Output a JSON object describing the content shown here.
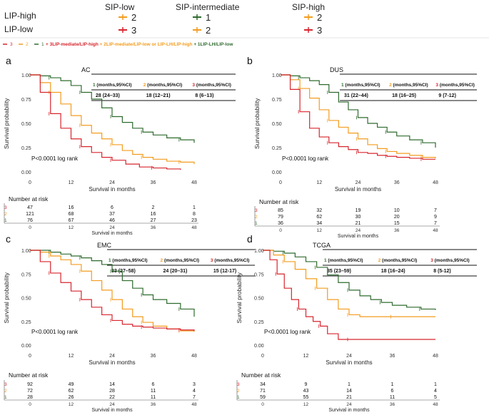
{
  "legend": {
    "col_headers": [
      "SIP-low",
      "SIP-intermediate",
      "SIP-high"
    ],
    "row_headers": [
      "LIP-high",
      "LIP-low"
    ],
    "cells": [
      [
        "2",
        "1",
        "2"
      ],
      [
        "3",
        "2",
        "3"
      ]
    ],
    "cell_colors": [
      [
        "#f39c1f",
        "#2f6b2f",
        "#f39c1f"
      ],
      [
        "#d7262e",
        "#f39c1f",
        "#d7262e"
      ]
    ],
    "line_items": [
      {
        "num": "3",
        "color": "#d7262e"
      },
      {
        "num": "2",
        "color": "#f39c1f"
      },
      {
        "num": "1",
        "color": "#2f6b2f"
      }
    ],
    "line_text": [
      {
        "text": "+ 3LIP-mediate/LIP-high",
        "color": "#d7262e"
      },
      {
        "text": "+ 2LIP-mediate/LIP-low or LIP-LH/LIP-high",
        "color": "#f39c1f"
      },
      {
        "text": "+ 1LIP-LH/LIP-low",
        "color": "#2f6b2f"
      }
    ]
  },
  "colors": {
    "g1": "#2f6b2f",
    "g2": "#f39c1f",
    "g3": "#d7262e"
  },
  "chart_data": [
    {
      "type": "line",
      "panel": "a",
      "title": "AC",
      "xlabel": "Survival in months",
      "ylabel": "Survival probability",
      "xlim": [
        0,
        48
      ],
      "ylim": [
        0,
        1
      ],
      "xticks": [
        0,
        12,
        24,
        36,
        48
      ],
      "yticks": [
        "1.00",
        "0.75",
        "0.50",
        "0.25",
        "0.00"
      ],
      "pvalue": "P<0.0001 log rank",
      "median_header": [
        "(months,95%CI)",
        "(months,95%CI)",
        "(months,95%CI)"
      ],
      "median_values": [
        "28 (24–33)",
        "18 (12–21)",
        "8 (6–13)"
      ],
      "risk_title": "Number at risk",
      "risk": [
        {
          "group": "3",
          "values": [
            "47",
            "16",
            "6",
            "2",
            "1"
          ]
        },
        {
          "group": "2",
          "values": [
            "121",
            "68",
            "37",
            "16",
            "8"
          ]
        },
        {
          "group": "1",
          "values": [
            "76",
            "67",
            "46",
            "27",
            "23"
          ]
        }
      ],
      "series": [
        {
          "name": "1",
          "x": [
            0,
            3,
            6,
            9,
            12,
            15,
            18,
            21,
            24,
            27,
            30,
            33,
            36,
            40,
            44,
            48
          ],
          "y": [
            1.0,
            0.99,
            0.97,
            0.94,
            0.89,
            0.82,
            0.75,
            0.66,
            0.57,
            0.51,
            0.45,
            0.41,
            0.38,
            0.35,
            0.33,
            0.3
          ]
        },
        {
          "name": "2",
          "x": [
            0,
            3,
            6,
            9,
            12,
            15,
            18,
            21,
            24,
            27,
            30,
            33,
            36,
            40,
            44,
            48
          ],
          "y": [
            1.0,
            0.92,
            0.82,
            0.7,
            0.58,
            0.48,
            0.4,
            0.34,
            0.28,
            0.22,
            0.18,
            0.15,
            0.13,
            0.11,
            0.1,
            0.08
          ]
        },
        {
          "name": "3",
          "x": [
            0,
            3,
            6,
            9,
            12,
            15,
            18,
            21,
            24,
            28,
            32,
            36,
            40,
            44
          ],
          "y": [
            1.0,
            0.82,
            0.6,
            0.45,
            0.34,
            0.26,
            0.2,
            0.15,
            0.12,
            0.08,
            0.05,
            0.04,
            0.03,
            0.02
          ]
        }
      ]
    },
    {
      "type": "line",
      "panel": "b",
      "title": "DUS",
      "xlabel": "Survival in months",
      "ylabel": "Survival probability",
      "xlim": [
        0,
        48
      ],
      "ylim": [
        0,
        1
      ],
      "xticks": [
        0,
        12,
        24,
        36,
        48
      ],
      "yticks": [
        "1.00",
        "0.75",
        "0.50",
        "0.25",
        "0.00"
      ],
      "pvalue": "P<0.0001 log rank",
      "median_header": [
        "(months,95%CI)",
        "(months,95%CI)",
        "(months,95%CI)"
      ],
      "median_values": [
        "31 (22–44)",
        "18 (16–25)",
        "9 (7-12)"
      ],
      "risk_title": "Number at risk",
      "risk": [
        {
          "group": "3",
          "values": [
            "85",
            "32",
            "19",
            "10",
            "7"
          ]
        },
        {
          "group": "2",
          "values": [
            "79",
            "62",
            "30",
            "20",
            "9"
          ]
        },
        {
          "group": "1",
          "values": [
            "36",
            "34",
            "21",
            "15",
            "7"
          ]
        }
      ],
      "series": [
        {
          "name": "1",
          "x": [
            0,
            3,
            6,
            9,
            12,
            15,
            18,
            21,
            24,
            27,
            30,
            33,
            36,
            40,
            44,
            48
          ],
          "y": [
            1.0,
            0.99,
            0.97,
            0.94,
            0.9,
            0.82,
            0.72,
            0.64,
            0.56,
            0.5,
            0.46,
            0.41,
            0.37,
            0.33,
            0.3,
            0.25
          ]
        },
        {
          "name": "2",
          "x": [
            0,
            3,
            6,
            9,
            12,
            15,
            18,
            21,
            24,
            27,
            30,
            33,
            36,
            40,
            44,
            48
          ],
          "y": [
            1.0,
            0.95,
            0.86,
            0.76,
            0.64,
            0.53,
            0.46,
            0.4,
            0.34,
            0.28,
            0.24,
            0.21,
            0.19,
            0.17,
            0.15,
            0.14
          ]
        },
        {
          "name": "3",
          "x": [
            0,
            3,
            6,
            9,
            12,
            15,
            18,
            21,
            24,
            27,
            30,
            33,
            36,
            40,
            44,
            48
          ],
          "y": [
            1.0,
            0.85,
            0.62,
            0.45,
            0.36,
            0.3,
            0.26,
            0.23,
            0.2,
            0.19,
            0.17,
            0.16,
            0.15,
            0.14,
            0.13,
            0.13
          ]
        }
      ]
    },
    {
      "type": "line",
      "panel": "c",
      "title": "EMC",
      "xlabel": "Survival in months",
      "ylabel": "Survival probability",
      "xlim": [
        0,
        48
      ],
      "ylim": [
        0,
        1
      ],
      "xticks": [
        0,
        12,
        24,
        36,
        48
      ],
      "yticks": [
        "1.00",
        "0.75",
        "0.50",
        "0.25",
        "0.00"
      ],
      "pvalue": "P<0.0001 log rank",
      "median_header": [
        "(months,95%CI)",
        "(months,95%CI)",
        "(months,95%CI)"
      ],
      "median_values": [
        "33 (27–58)",
        "24 (20–31)",
        "15 (12-17)"
      ],
      "risk_title": "Number at risk",
      "risk": [
        {
          "group": "3",
          "values": [
            "92",
            "49",
            "14",
            "6",
            "3"
          ]
        },
        {
          "group": "2",
          "values": [
            "72",
            "62",
            "28",
            "11",
            "4"
          ]
        },
        {
          "group": "1",
          "values": [
            "28",
            "26",
            "22",
            "11",
            "7"
          ]
        }
      ],
      "series": [
        {
          "name": "1",
          "x": [
            0,
            3,
            6,
            9,
            12,
            15,
            18,
            21,
            24,
            27,
            30,
            33,
            36,
            40,
            44,
            48
          ],
          "y": [
            1.0,
            1.0,
            0.98,
            0.96,
            0.94,
            0.92,
            0.89,
            0.85,
            0.78,
            0.68,
            0.6,
            0.53,
            0.48,
            0.44,
            0.38,
            0.3
          ]
        },
        {
          "name": "2",
          "x": [
            0,
            3,
            6,
            9,
            12,
            15,
            18,
            21,
            24,
            27,
            30,
            33,
            36,
            40,
            44,
            48
          ],
          "y": [
            1.0,
            0.98,
            0.94,
            0.9,
            0.85,
            0.78,
            0.68,
            0.58,
            0.48,
            0.38,
            0.3,
            0.24,
            0.2,
            0.17,
            0.15,
            0.14
          ]
        },
        {
          "name": "3",
          "x": [
            0,
            3,
            6,
            9,
            12,
            15,
            18,
            21,
            24,
            27,
            30,
            33,
            36,
            40,
            44,
            48
          ],
          "y": [
            1.0,
            0.88,
            0.76,
            0.66,
            0.57,
            0.48,
            0.4,
            0.32,
            0.26,
            0.22,
            0.2,
            0.19,
            0.18,
            0.17,
            0.16,
            0.15
          ]
        }
      ]
    },
    {
      "type": "line",
      "panel": "d",
      "title": "TCGA",
      "xlabel": "Survival in months",
      "ylabel": "Survival probability",
      "xlim": [
        0,
        48
      ],
      "ylim": [
        0,
        1
      ],
      "xticks": [
        0,
        12,
        24,
        36,
        48
      ],
      "yticks": [
        "1.00",
        "0.75",
        "0.50",
        "0.25",
        "0.00"
      ],
      "pvalue": "P<0.0001 log rank",
      "median_header": [
        "(months,95%CI)",
        "(months,95%CI)",
        "(months,95%CI)"
      ],
      "median_values": [
        "35 (23–59)",
        "18 (16–24)",
        "8  (5-12)"
      ],
      "risk_title": "Number at risk",
      "risk": [
        {
          "group": "3",
          "values": [
            "34",
            "9",
            "1",
            "1",
            "1"
          ]
        },
        {
          "group": "2",
          "values": [
            "71",
            "43",
            "14",
            "6",
            "4"
          ]
        },
        {
          "group": "1",
          "values": [
            "59",
            "55",
            "21",
            "11",
            "5"
          ]
        }
      ],
      "series": [
        {
          "name": "1",
          "x": [
            0,
            3,
            6,
            9,
            12,
            15,
            18,
            21,
            24,
            27,
            30,
            33,
            36,
            40,
            44,
            48
          ],
          "y": [
            1.0,
            0.99,
            0.97,
            0.93,
            0.88,
            0.82,
            0.74,
            0.66,
            0.58,
            0.52,
            0.48,
            0.45,
            0.42,
            0.4,
            0.38,
            0.37
          ]
        },
        {
          "name": "2",
          "x": [
            0,
            3,
            6,
            9,
            12,
            15,
            18,
            21,
            24,
            27,
            30,
            36,
            42,
            48
          ],
          "y": [
            1.0,
            0.95,
            0.88,
            0.8,
            0.7,
            0.6,
            0.48,
            0.38,
            0.32,
            0.3,
            0.3,
            0.3,
            0.3,
            0.3
          ]
        },
        {
          "name": "3",
          "x": [
            0,
            2,
            4,
            6,
            8,
            10,
            12,
            14,
            16,
            18,
            21,
            24,
            36,
            48
          ],
          "y": [
            1.0,
            0.9,
            0.75,
            0.6,
            0.48,
            0.38,
            0.3,
            0.25,
            0.2,
            0.12,
            0.06,
            0.06,
            0.06,
            0.06
          ]
        }
      ]
    }
  ]
}
